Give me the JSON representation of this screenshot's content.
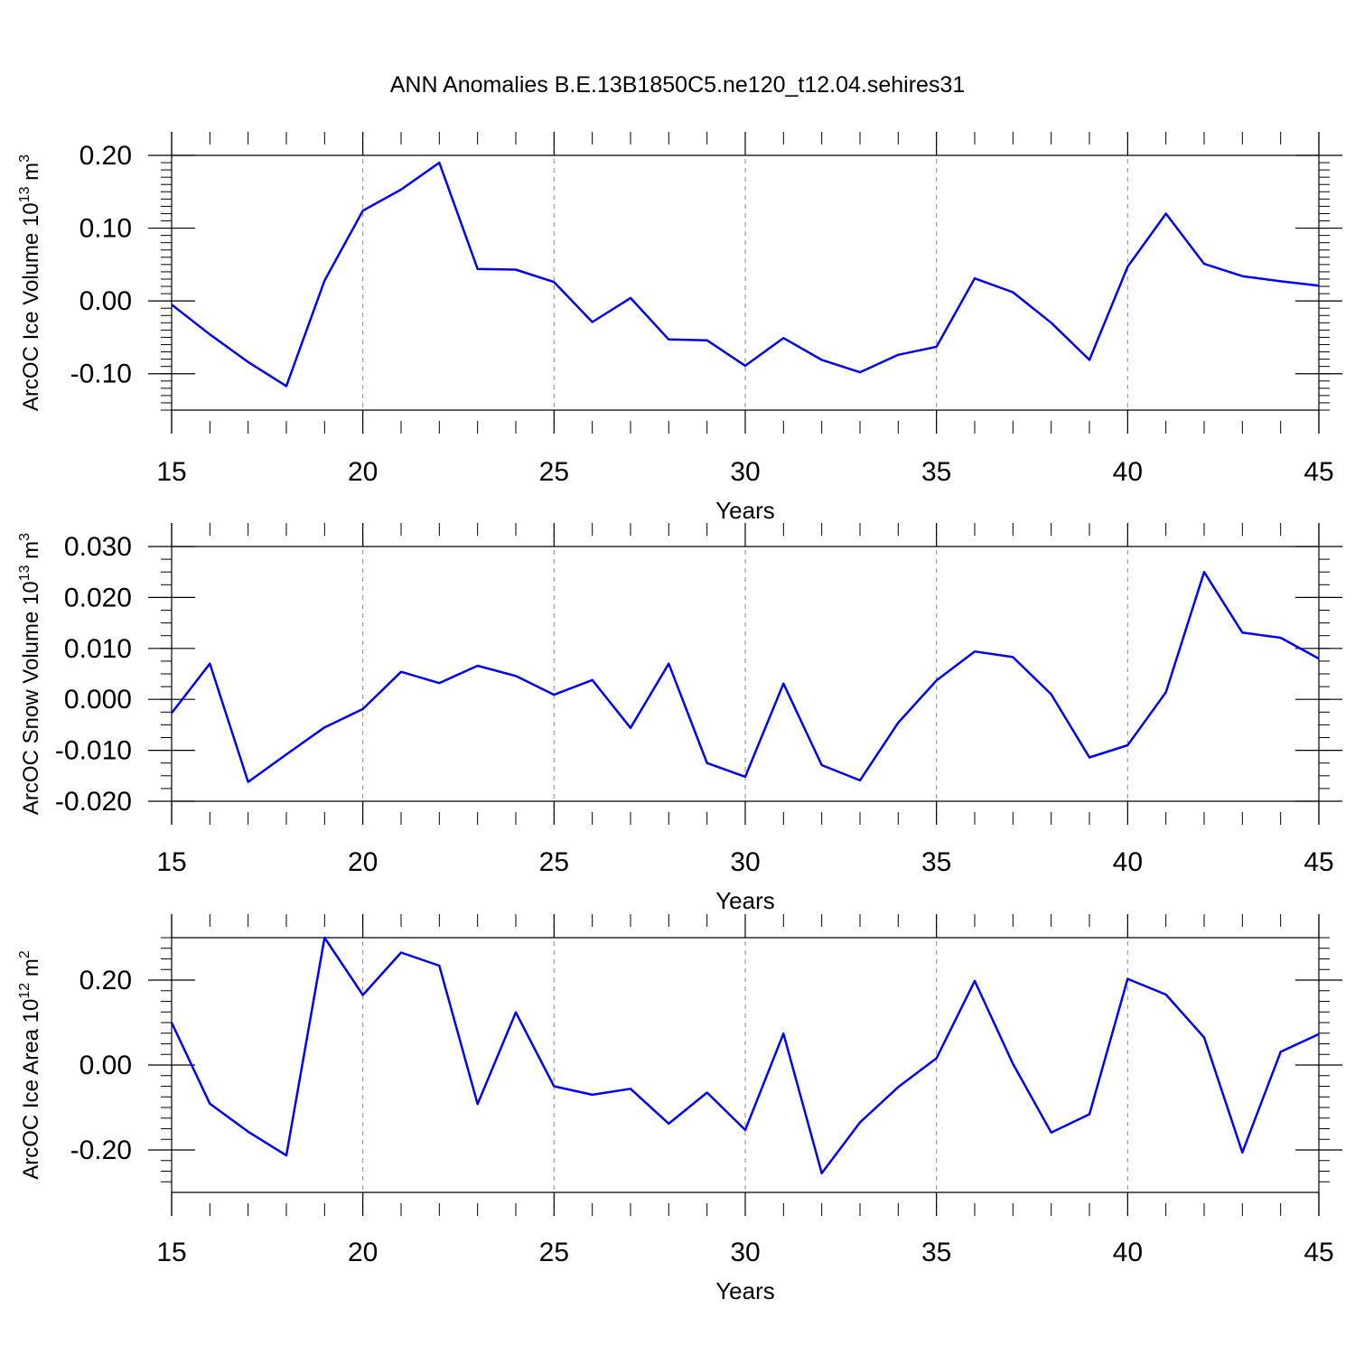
{
  "title": "ANN Anomalies B.E.13B1850C5.ne120_t12.04.sehires31",
  "line_color": "#0000ff",
  "chart_data": [
    {
      "type": "line",
      "ylabel": "ArcOC Ice Volume 10",
      "ylabel_exponent": "13",
      "ylabel_unit": "m",
      "ylabel_unit_exponent": "3",
      "xlabel": "Years",
      "xlim": [
        15,
        45
      ],
      "ylim": [
        -0.15,
        0.2
      ],
      "xticks": [
        15,
        20,
        25,
        30,
        35,
        40,
        45
      ],
      "yticks": [
        0.2,
        0.1,
        0.0,
        -0.1
      ],
      "ytick_labels": [
        "0.20",
        "0.10",
        "0.00",
        "-0.10"
      ],
      "x": [
        15,
        16,
        17,
        18,
        19,
        20,
        21,
        22,
        23,
        24,
        25,
        26,
        27,
        28,
        29,
        30,
        31,
        32,
        33,
        34,
        35,
        36,
        37,
        38,
        39,
        40,
        41,
        42,
        43,
        44,
        45
      ],
      "series": [
        {
          "values": [
            -0.005,
            -0.046,
            -0.084,
            -0.117,
            0.028,
            0.124,
            0.153,
            0.19,
            0.044,
            0.043,
            0.026,
            -0.029,
            0.004,
            -0.053,
            -0.054,
            -0.089,
            -0.051,
            -0.081,
            -0.098,
            -0.074,
            -0.063,
            0.031,
            0.012,
            -0.03,
            -0.081,
            0.047,
            0.12,
            0.051,
            0.034,
            0.027,
            0.021
          ]
        }
      ]
    },
    {
      "type": "line",
      "ylabel": "ArcOC Snow Volume 10",
      "ylabel_exponent": "13",
      "ylabel_unit": "m",
      "ylabel_unit_exponent": "3",
      "xlabel": "Years",
      "xlim": [
        15,
        45
      ],
      "ylim": [
        -0.02,
        0.03
      ],
      "xticks": [
        15,
        20,
        25,
        30,
        35,
        40,
        45
      ],
      "yticks": [
        0.03,
        0.02,
        0.01,
        0.0,
        -0.01,
        -0.02
      ],
      "ytick_labels": [
        "0.030",
        "0.020",
        "0.010",
        "0.000",
        "-0.010",
        "-0.020"
      ],
      "x": [
        15,
        16,
        17,
        18,
        19,
        20,
        21,
        22,
        23,
        24,
        25,
        26,
        27,
        28,
        29,
        30,
        31,
        32,
        33,
        34,
        35,
        36,
        37,
        38,
        39,
        40,
        41,
        42,
        43,
        44,
        45
      ],
      "series": [
        {
          "values": [
            -0.0027,
            0.007,
            -0.0162,
            -0.0108,
            -0.0055,
            -0.0019,
            0.0054,
            0.0032,
            0.0066,
            0.0046,
            0.0009,
            0.0038,
            -0.0056,
            0.007,
            -0.0125,
            -0.0152,
            0.0031,
            -0.0129,
            -0.0159,
            -0.0046,
            0.0037,
            0.0094,
            0.0083,
            0.001,
            -0.0114,
            -0.009,
            0.0014,
            0.025,
            0.0131,
            0.0121,
            0.008
          ]
        }
      ]
    },
    {
      "type": "line",
      "ylabel": "ArcOC Ice Area 10",
      "ylabel_exponent": "12",
      "ylabel_unit": "m",
      "ylabel_unit_exponent": "2",
      "xlabel": "Years",
      "xlim": [
        15,
        45
      ],
      "ylim": [
        -0.3,
        0.3
      ],
      "xticks": [
        15,
        20,
        25,
        30,
        35,
        40,
        45
      ],
      "yticks": [
        0.2,
        0.0,
        -0.2
      ],
      "ytick_labels": [
        "0.20",
        "0.00",
        "-0.20"
      ],
      "x": [
        15,
        16,
        17,
        18,
        19,
        20,
        21,
        22,
        23,
        24,
        25,
        26,
        27,
        28,
        29,
        30,
        31,
        32,
        33,
        34,
        35,
        36,
        37,
        38,
        39,
        40,
        41,
        42,
        43,
        44,
        45
      ],
      "series": [
        {
          "values": [
            0.1,
            -0.091,
            -0.157,
            -0.213,
            0.3,
            0.165,
            0.265,
            0.234,
            -0.092,
            0.124,
            -0.05,
            -0.07,
            -0.056,
            -0.138,
            -0.065,
            -0.153,
            0.074,
            -0.255,
            -0.135,
            -0.052,
            0.016,
            0.198,
            0.003,
            -0.159,
            -0.116,
            0.203,
            0.166,
            0.065,
            -0.206,
            0.031,
            0.073
          ]
        }
      ]
    }
  ]
}
